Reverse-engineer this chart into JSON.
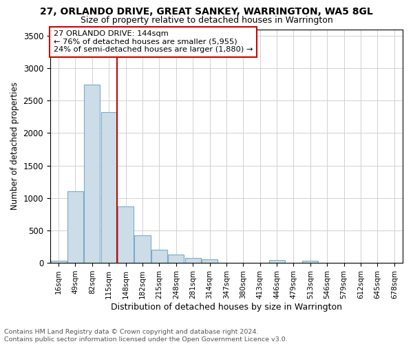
{
  "title": "27, ORLANDO DRIVE, GREAT SANKEY, WARRINGTON, WA5 8GL",
  "subtitle": "Size of property relative to detached houses in Warrington",
  "xlabel": "Distribution of detached houses by size in Warrington",
  "ylabel": "Number of detached properties",
  "annotation_line1": "27 ORLANDO DRIVE: 144sqm",
  "annotation_line2": "← 76% of detached houses are smaller (5,955)",
  "annotation_line3": "24% of semi-detached houses are larger (1,880) →",
  "categories": [
    "16sqm",
    "49sqm",
    "82sqm",
    "115sqm",
    "148sqm",
    "182sqm",
    "215sqm",
    "248sqm",
    "281sqm",
    "314sqm",
    "347sqm",
    "380sqm",
    "413sqm",
    "446sqm",
    "479sqm",
    "513sqm",
    "546sqm",
    "579sqm",
    "612sqm",
    "645sqm",
    "678sqm"
  ],
  "values": [
    30,
    1100,
    2750,
    2320,
    870,
    430,
    200,
    130,
    80,
    50,
    5,
    0,
    0,
    45,
    0,
    30,
    0,
    0,
    0,
    0,
    0
  ],
  "bar_color": "#ccdde8",
  "bar_edge_color": "#7aaac8",
  "vline_color": "#cc0000",
  "box_color": "#cc0000",
  "ylim": [
    0,
    3600
  ],
  "yticks": [
    0,
    500,
    1000,
    1500,
    2000,
    2500,
    3000,
    3500
  ],
  "footer_line1": "Contains HM Land Registry data © Crown copyright and database right 2024.",
  "footer_line2": "Contains public sector information licensed under the Open Government Licence v3.0.",
  "bg_color": "#ffffff",
  "grid_color": "#d0d0d0"
}
